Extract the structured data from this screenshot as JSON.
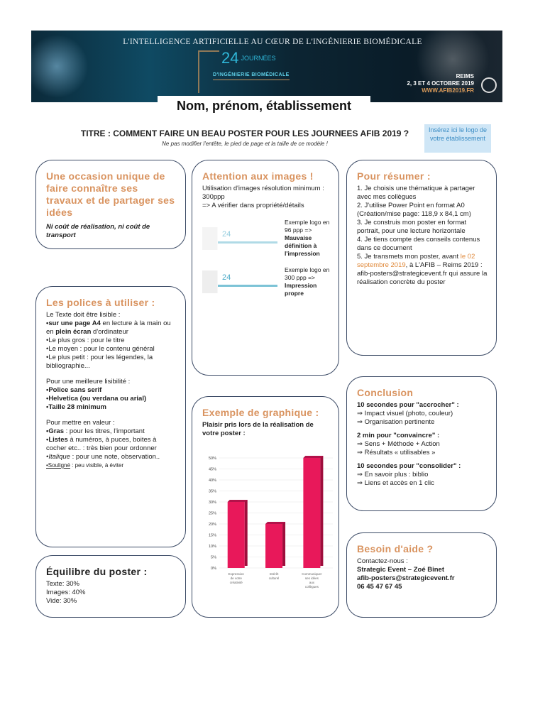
{
  "banner": {
    "title": "L'INTELLIGENCE ARTIFICIELLE AU CŒUR DE L'INGÉNIERIE BIOMÉDICALE",
    "edition": "24",
    "edition_suffix": "JOURNÉES",
    "event": "D'INGÉNIERIE BIOMÉDICALE",
    "city": "REIMS",
    "dates": "2, 3 ET 4 OCTOBRE 2019",
    "url": "WWW.AFIB2019.FR"
  },
  "name_label": "Nom, prénom, établissement",
  "title": "TITRE : COMMENT FAIRE UN BEAU POSTER POUR LES JOURNEES AFIB 2019 ?",
  "subtitle": "Ne pas modifier l'entête, le pied de page et la taille de ce modèle !",
  "logo_placeholder": "Insérez ici le logo de votre établissement",
  "occasion": {
    "heading": "Une occasion unique de faire connaître ses travaux et de partager ses idées",
    "note": "Ni coût de réalisation, ni coût de transport"
  },
  "polices": {
    "heading": "Les polices à utiliser :",
    "intro": "Le Texte doit être lisible :",
    "l1b": "•sur une page A4",
    "l1a": " en lecture à la main ou en ",
    "l1c": "plein écran",
    "l1d": " d'ordinateur",
    "l2": "•Le plus gros : pour le titre",
    "l3": "•Le moyen : pour le contenu général",
    "l4": "•Le plus petit : pour les légendes, la bibliographie...",
    "lis_intro": "Pour une meilleure lisibilité :",
    "lis1": "•Police sans serif",
    "lis2": "•Helvetica (ou verdana ou arial)",
    "lis3": "•Taille 28 minimum",
    "val_intro": "Pour mettre en valeur :",
    "v1b": "•Gras",
    "v1": " : pour les titres, l'important",
    "v2b": "•Listes",
    "v2": " à numéros, à puces, boites à cocher etc.. : très bien pour ordonner",
    "v3b": "•Italique",
    "v3": " : pour une note, observation..",
    "v4b": "•Souligné",
    "v4": " : peu visible, à éviter"
  },
  "equilibre": {
    "heading": "Équilibre du poster :",
    "lines": [
      "Texte: 30%",
      "Images: 40%",
      "Vide: 30%"
    ]
  },
  "images": {
    "heading": "Attention aux images !",
    "intro": "Utilisation d'images résolution minimum : 300ppp",
    "check": "=> A vérifier dans propriété/détails",
    "ex1a": "Exemple logo en 96 ppp =>",
    "ex1b": "Mauvaise définition à l'impression",
    "ex2a": "Exemple logo en 300 ppp =>",
    "ex2b": "Impression propre",
    "logo_text": "24"
  },
  "graph": {
    "heading": "Exemple de graphique :",
    "subheading": "Plaisir pris lors de la réalisation de votre poster :"
  },
  "chart_data": {
    "type": "bar",
    "categories": [
      "Expression de votre créativité",
      "Intérêt culturel",
      "Communiquer ses idées aux collègues"
    ],
    "values": [
      30,
      20,
      50
    ],
    "ylim": [
      0,
      50
    ],
    "yticks": [
      "0%",
      "5%",
      "10%",
      "15%",
      "20%",
      "25%",
      "30%",
      "35%",
      "40%",
      "45%",
      "50%"
    ],
    "grid": true,
    "color": "#e8185a"
  },
  "resumer": {
    "heading": "Pour résumer :",
    "s1": "1. Je choisis une thématique à partager avec mes collègues",
    "s2": "2. J'utilise Power Point en format A0",
    "s2b": "(Création/mise page: 118,9 x 84,1 cm)",
    "s3": "3. Je construis mon poster en format portrait, pour une lecture horizontale",
    "s4": "4. Je tiens compte des conseils contenus dans ce document",
    "s5a": "5. Je transmets mon poster, avant ",
    "s5date": "le 02 septembre 2019",
    "s5b": ", à L'AFIB – Reims 2019 :",
    "s5c": "afib-posters@strategicevent.fr qui assure la réalisation concrète du poster"
  },
  "conclusion": {
    "heading": "Conclusion",
    "h1": "10 secondes pour \"accrocher\" :",
    "a1": "⇒ Impact visuel (photo, couleur)",
    "a2": "⇒ Organisation pertinente",
    "h2": "2 min pour \"convaincre\" :",
    "b1": "⇒ Sens + Méthode + Action",
    "b2": "⇒ Résultats « utilisables »",
    "h3": "10 secondes pour \"consolider\" :",
    "c1": "⇒ En savoir plus : biblio",
    "c2": "⇒ Liens et accès en 1 clic"
  },
  "aide": {
    "heading": "Besoin d'aide ?",
    "intro": "Contactez-nous :",
    "org": "Strategic Event – Zoé Binet",
    "email": "afib-posters@strategicevent.fr",
    "phone": "06 45 47 67 45"
  }
}
